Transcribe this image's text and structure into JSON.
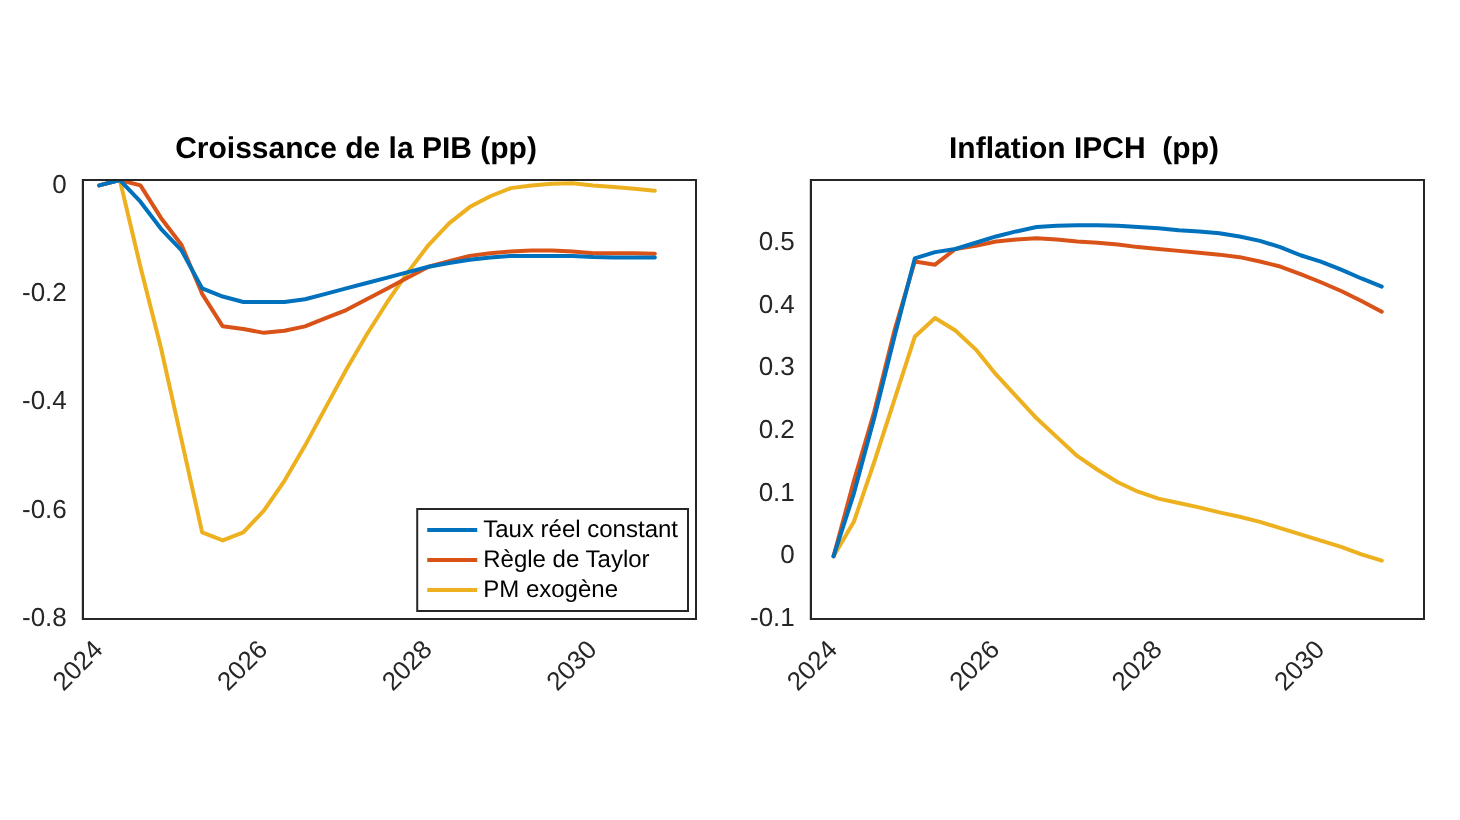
{
  "chart_data": [
    {
      "type": "line",
      "title": "Croissance de la PIB (pp)",
      "legend": "bottom right",
      "grid": false,
      "marker": "none",
      "line_style": "solid",
      "x": [
        2024,
        2024.25,
        2024.5,
        2024.75,
        2025,
        2025.25,
        2025.5,
        2025.75,
        2026,
        2026.25,
        2026.5,
        2026.75,
        2027,
        2027.25,
        2027.5,
        2027.75,
        2028,
        2028.25,
        2028.5,
        2028.75,
        2029,
        2029.25,
        2029.5,
        2029.75,
        2030,
        2030.25,
        2030.5,
        2030.75
      ],
      "xlim": [
        2023.8,
        2031.25
      ],
      "xticks": [
        2024,
        2026,
        2028,
        2030
      ],
      "ylim": [
        -0.8,
        0.01
      ],
      "yticks": [
        -0.8,
        -0.6,
        -0.4,
        -0.2,
        0
      ],
      "series": [
        {
          "name": "Taux réel constant",
          "color": "#0072bd",
          "values": [
            0,
            0.01,
            -0.03,
            -0.08,
            -0.12,
            -0.19,
            -0.205,
            -0.215,
            -0.215,
            -0.215,
            -0.21,
            -0.2,
            -0.19,
            -0.18,
            -0.17,
            -0.16,
            -0.15,
            -0.143,
            -0.137,
            -0.133,
            -0.13,
            -0.13,
            -0.13,
            -0.13,
            -0.132,
            -0.133,
            -0.133,
            -0.133
          ]
        },
        {
          "name": "Règle de Taylor",
          "color": "#d95319",
          "values": [
            0,
            0.01,
            0,
            -0.06,
            -0.11,
            -0.2,
            -0.26,
            -0.265,
            -0.272,
            -0.268,
            -0.26,
            -0.245,
            -0.23,
            -0.21,
            -0.19,
            -0.17,
            -0.15,
            -0.14,
            -0.13,
            -0.125,
            -0.122,
            -0.12,
            -0.12,
            -0.122,
            -0.125,
            -0.125,
            -0.125,
            -0.126
          ]
        },
        {
          "name": "PM exogène",
          "color": "#edb120",
          "values": [
            0,
            0.01,
            -0.15,
            -0.3,
            -0.47,
            -0.64,
            -0.655,
            -0.64,
            -0.6,
            -0.545,
            -0.48,
            -0.41,
            -0.34,
            -0.275,
            -0.215,
            -0.16,
            -0.11,
            -0.07,
            -0.04,
            -0.02,
            -0.005,
            0,
            0.003,
            0.004,
            0,
            -0.003,
            -0.006,
            -0.01
          ]
        }
      ]
    },
    {
      "type": "line",
      "title": "Inflation IPCH  (pp)",
      "grid": false,
      "marker": "none",
      "line_style": "solid",
      "x": [
        2024,
        2024.25,
        2024.5,
        2024.75,
        2025,
        2025.25,
        2025.5,
        2025.75,
        2026,
        2026.25,
        2026.5,
        2026.75,
        2027,
        2027.25,
        2027.5,
        2027.75,
        2028,
        2028.25,
        2028.5,
        2028.75,
        2029,
        2029.25,
        2029.5,
        2029.75,
        2030,
        2030.25,
        2030.5,
        2030.75
      ],
      "xlim": [
        2023.72,
        2031.27
      ],
      "xticks": [
        2024,
        2026,
        2028,
        2030
      ],
      "ylim": [
        -0.1,
        0.6
      ],
      "yticks": [
        -0.1,
        0,
        0.1,
        0.2,
        0.3,
        0.4,
        0.5
      ],
      "series": [
        {
          "color": "#0072bd",
          "values": [
            0,
            0.1,
            0.22,
            0.35,
            0.475,
            0.485,
            0.49,
            0.5,
            0.51,
            0.518,
            0.525,
            0.527,
            0.528,
            0.528,
            0.527,
            0.525,
            0.523,
            0.52,
            0.518,
            0.515,
            0.51,
            0.503,
            0.493,
            0.48,
            0.47,
            0.457,
            0.443,
            0.43
          ]
        },
        {
          "color": "#d95319",
          "values": [
            0,
            0.12,
            0.23,
            0.36,
            0.47,
            0.465,
            0.49,
            0.495,
            0.502,
            0.505,
            0.507,
            0.505,
            0.502,
            0.5,
            0.497,
            0.493,
            0.49,
            0.487,
            0.484,
            0.481,
            0.477,
            0.47,
            0.462,
            0.45,
            0.437,
            0.423,
            0.407,
            0.39
          ]
        },
        {
          "color": "#edb120",
          "values": [
            0,
            0.055,
            0.15,
            0.25,
            0.35,
            0.38,
            0.36,
            0.33,
            0.29,
            0.255,
            0.22,
            0.19,
            0.16,
            0.138,
            0.118,
            0.103,
            0.092,
            0.085,
            0.078,
            0.07,
            0.063,
            0.055,
            0.045,
            0.035,
            0.025,
            0.015,
            0.003,
            -0.007
          ]
        }
      ]
    }
  ]
}
